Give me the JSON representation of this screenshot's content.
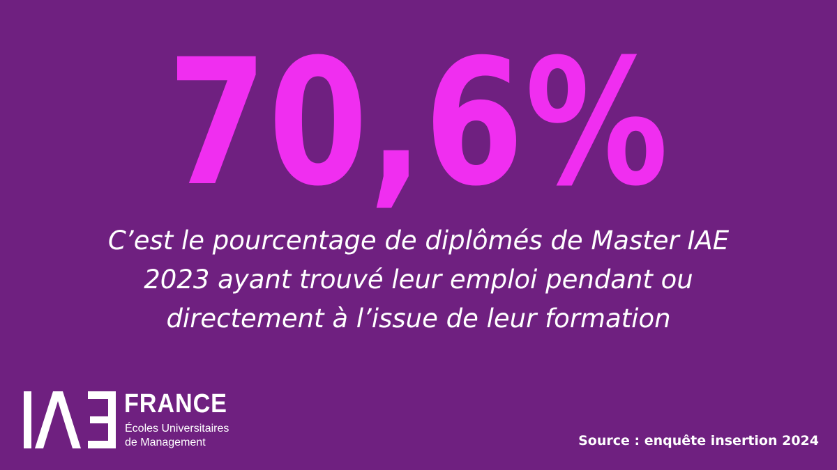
{
  "headline": {
    "value": "70,6%"
  },
  "caption": {
    "lines": [
      "C’est le pourcentage de diplômés de Master IAE",
      "2023 ayant trouvé leur emploi pendant ou",
      "directement à l’issue de leur formation"
    ]
  },
  "logo": {
    "mark_text": "IAE",
    "country": "FRANCE",
    "tagline_lines": [
      "Écoles Universitaires",
      "de Management"
    ]
  },
  "source": {
    "text": "Source : enquête insertion 2024"
  },
  "colors": {
    "background": "#6f2080",
    "accent": "#f02ef0",
    "text": "#ffffff"
  }
}
